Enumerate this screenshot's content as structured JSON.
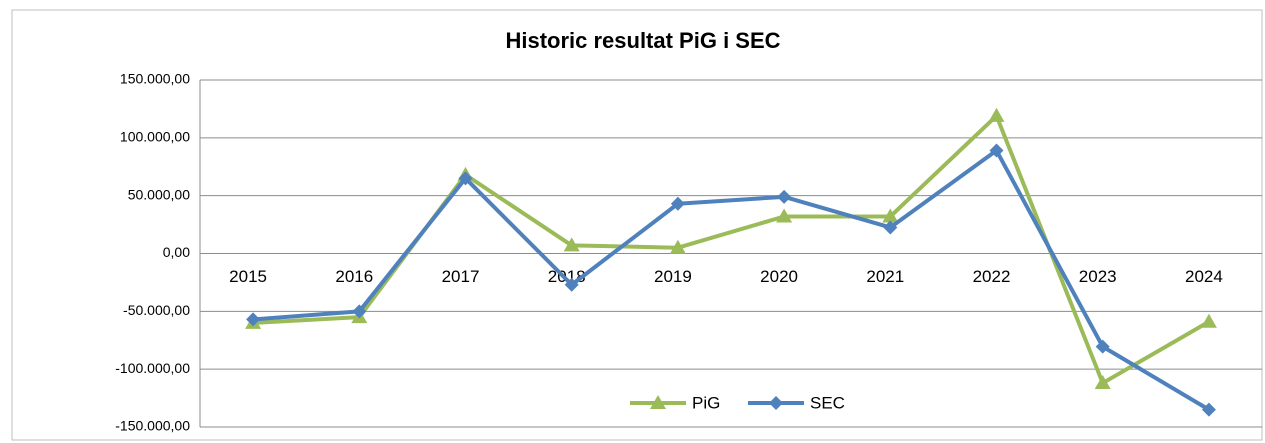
{
  "chart_data": {
    "type": "line",
    "title": "Historic resultat PiG i SEC",
    "categories": [
      "2015",
      "2016",
      "2017",
      "2018",
      "2019",
      "2020",
      "2021",
      "2022",
      "2023",
      "2024"
    ],
    "series": [
      {
        "name": "PiG",
        "color": "#9bbb59",
        "marker": "triangle",
        "values": [
          -60000,
          -55000,
          68000,
          7000,
          5000,
          32000,
          32000,
          119000,
          -112000,
          -59000
        ]
      },
      {
        "name": "SEC",
        "color": "#4f81bd",
        "marker": "diamond",
        "values": [
          -57000,
          -50000,
          65000,
          -27000,
          43000,
          49000,
          22500,
          89000,
          -80500,
          -135000
        ]
      }
    ],
    "ylim": [
      -150000,
      150000
    ],
    "yticks": [
      {
        "value": -150000,
        "label": "-150.000,00"
      },
      {
        "value": -100000,
        "label": "-100.000,00"
      },
      {
        "value": -50000,
        "label": "-50.000,00"
      },
      {
        "value": 0,
        "label": "0,00"
      },
      {
        "value": 50000,
        "label": "50.000,00"
      },
      {
        "value": 100000,
        "label": "100.000,00"
      },
      {
        "value": 150000,
        "label": "150.000,00"
      }
    ],
    "grid": true,
    "legend": "bottom"
  }
}
